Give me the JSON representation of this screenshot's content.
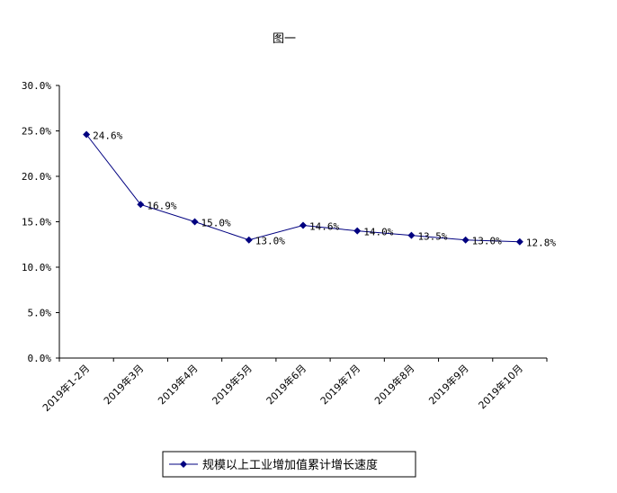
{
  "chart_data": {
    "type": "line",
    "title": "图一",
    "categories": [
      "2019年1-2月",
      "2019年3月",
      "2019年4月",
      "2019年5月",
      "2019年6月",
      "2019年7月",
      "2019年8月",
      "2019年9月",
      "2019年10月"
    ],
    "series": [
      {
        "name": "规模以上工业增加值累计增长速度",
        "values": [
          24.6,
          16.9,
          15.0,
          13.0,
          14.6,
          14.0,
          13.5,
          13.0,
          12.8
        ],
        "labels": [
          "24.6%",
          "16.9%",
          "15.0%",
          "13.0%",
          "14.6%",
          "14.0%",
          "13.5%",
          "13.0%",
          "12.8%"
        ]
      }
    ],
    "yticks": [
      "0.0%",
      "5.0%",
      "10.0%",
      "15.0%",
      "20.0%",
      "25.0%",
      "30.0%"
    ],
    "ylim": [
      0,
      30
    ],
    "legend_position": "bottom",
    "grid": false,
    "color": "#000080"
  }
}
